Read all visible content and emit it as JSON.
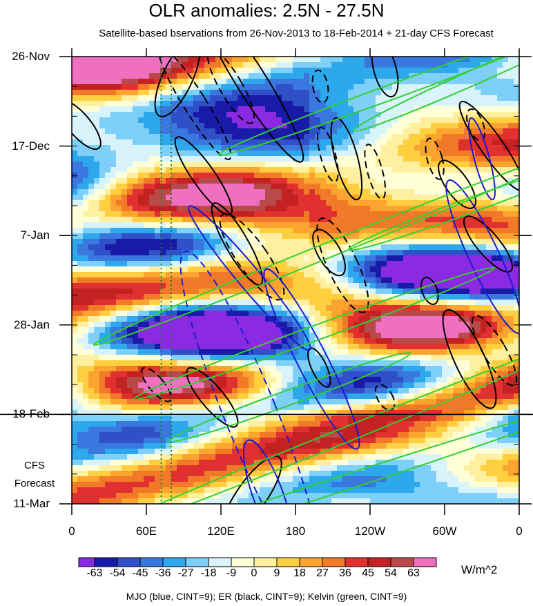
{
  "chart_data": {
    "type": "heatmap",
    "title": "OLR anomalies: 2.5N - 27.5N",
    "subtitle": "Satellite-based bservations from 26-Nov-2013 to 18-Feb-2014 + 21-day CFS Forecast",
    "x_tick_labels": [
      "0",
      "60E",
      "120E",
      "180",
      "120W",
      "60W",
      "0"
    ],
    "x_values_deg_east": [
      0,
      60,
      120,
      180,
      240,
      300,
      360
    ],
    "y_tick_labels": [
      "26-Nov",
      "17-Dec",
      "7-Jan",
      "28-Jan",
      "18-Feb",
      "11-Mar"
    ],
    "y_values_days": [
      0,
      21,
      42,
      63,
      84,
      105
    ],
    "forecast_start_day": 84,
    "forecast_label_line1": "CFS",
    "forecast_label_line2": "Forecast",
    "colorbar": {
      "levels": [
        "-63",
        "-54",
        "-45",
        "-36",
        "-27",
        "-18",
        "-9",
        "0",
        "9",
        "18",
        "27",
        "36",
        "45",
        "54",
        "63"
      ],
      "colors": [
        "#8a2be2",
        "#1a1aa8",
        "#3050c8",
        "#3a78e0",
        "#2ea8ec",
        "#7ed0f8",
        "#d9f3fb",
        "#ffffd8",
        "#fff0a0",
        "#ffcf40",
        "#fba430",
        "#f07a28",
        "#e03030",
        "#c42222",
        "#b84a4a",
        "#f070c0"
      ],
      "units": "W/m^2"
    },
    "footnote": "MJO (blue, CINT=9); ER (black, CINT=9); Kelvin (green, CINT=9)",
    "contour_colors": {
      "mjo": "#1a1ad0",
      "er": "#000000",
      "kelvin": "#30d030"
    },
    "contours": [
      {
        "kind": "er",
        "lon": 145,
        "day": 6,
        "rx": 4,
        "ry": 40,
        "rot": 32,
        "dash": false
      },
      {
        "kind": "er",
        "lon": 128,
        "day": 7,
        "rx": 3,
        "ry": 18,
        "rot": 30,
        "dash": true
      },
      {
        "kind": "er",
        "lon": 99,
        "day": 11,
        "rx": 3,
        "ry": 28,
        "rot": 32,
        "dash": true
      },
      {
        "kind": "er",
        "lon": 85,
        "day": 5,
        "rx": 4,
        "ry": 18,
        "rot": -25,
        "dash": false
      },
      {
        "kind": "er",
        "lon": 252,
        "day": 3,
        "rx": 3,
        "ry": 12,
        "rot": 15,
        "dash": false
      },
      {
        "kind": "er",
        "lon": 200,
        "day": 7,
        "rx": 2,
        "ry": 7,
        "rot": 10,
        "dash": true
      },
      {
        "kind": "er",
        "lon": 221,
        "day": 24,
        "rx": 3,
        "ry": 18,
        "rot": 15,
        "dash": false
      },
      {
        "kind": "er",
        "lon": 206,
        "day": 23,
        "rx": 2,
        "ry": 12,
        "rot": 15,
        "dash": true
      },
      {
        "kind": "er",
        "lon": 244,
        "day": 27,
        "rx": 2,
        "ry": 12,
        "rot": 15,
        "dash": true
      },
      {
        "kind": "er",
        "lon": 106,
        "day": 28,
        "rx": 3,
        "ry": 20,
        "rot": 35,
        "dash": false
      },
      {
        "kind": "er",
        "lon": 338,
        "day": 21,
        "rx": 3,
        "ry": 23,
        "rot": 35,
        "dash": false
      },
      {
        "kind": "er",
        "lon": 292,
        "day": 24,
        "rx": 2,
        "ry": 9,
        "rot": 15,
        "dash": true
      },
      {
        "kind": "er",
        "lon": 325,
        "day": 16,
        "rx": 2,
        "ry": 7,
        "rot": 20,
        "dash": true
      },
      {
        "kind": "er",
        "lon": 310,
        "day": 30,
        "rx": 3,
        "ry": 12,
        "rot": 35,
        "dash": false
      },
      {
        "kind": "er",
        "lon": 133,
        "day": 44,
        "rx": 3,
        "ry": 20,
        "rot": 30,
        "dash": false
      },
      {
        "kind": "er",
        "lon": 145,
        "day": 47,
        "rx": 4,
        "ry": 22,
        "rot": 35,
        "dash": true
      },
      {
        "kind": "er",
        "lon": 218,
        "day": 49,
        "rx": 4,
        "ry": 22,
        "rot": 25,
        "dash": true
      },
      {
        "kind": "er",
        "lon": 207,
        "day": 46,
        "rx": 3,
        "ry": 11,
        "rot": 30,
        "dash": false
      },
      {
        "kind": "er",
        "lon": 335,
        "day": 44,
        "rx": 3,
        "ry": 15,
        "rot": 40,
        "dash": false
      },
      {
        "kind": "er",
        "lon": 288,
        "day": 55,
        "rx": 2,
        "ry": 6,
        "rot": 20,
        "dash": false
      },
      {
        "kind": "er",
        "lon": 320,
        "day": 71,
        "rx": 4,
        "ry": 23,
        "rot": 25,
        "dash": false
      },
      {
        "kind": "er",
        "lon": 340,
        "day": 69,
        "rx": 3,
        "ry": 17,
        "rot": 30,
        "dash": true
      },
      {
        "kind": "er",
        "lon": 199,
        "day": 73,
        "rx": 2,
        "ry": 9,
        "rot": 25,
        "dash": false
      },
      {
        "kind": "er",
        "lon": 113,
        "day": 80,
        "rx": 3,
        "ry": 16,
        "rot": 40,
        "dash": false
      },
      {
        "kind": "er",
        "lon": 68,
        "day": 77,
        "rx": 2,
        "ry": 9,
        "rot": 40,
        "dash": true
      },
      {
        "kind": "er",
        "lon": 252,
        "day": 80,
        "rx": 2,
        "ry": 6,
        "rot": 30,
        "dash": true
      },
      {
        "kind": "er",
        "lon": 6,
        "day": 16,
        "rx": 3,
        "ry": 13,
        "rot": 40,
        "dash": false
      },
      {
        "kind": "er",
        "lon": 145,
        "day": 103,
        "rx": 4,
        "ry": 20,
        "rot": -35,
        "dash": false
      },
      {
        "kind": "mjo",
        "lon": 144,
        "day": 84,
        "rx": 7,
        "ry": 75,
        "rot": 22,
        "dash": true
      },
      {
        "kind": "mjo",
        "lon": 193,
        "day": 71,
        "rx": 4,
        "ry": 43,
        "rot": 27,
        "dash": false
      },
      {
        "kind": "mjo",
        "lon": 143,
        "day": 52,
        "rx": 3,
        "ry": 40,
        "rot": 40,
        "dash": false
      },
      {
        "kind": "mjo",
        "lon": 332,
        "day": 47,
        "rx": 4,
        "ry": 36,
        "rot": 25,
        "dash": false
      },
      {
        "kind": "mjo",
        "lon": 330,
        "day": 24,
        "rx": 2,
        "ry": 18,
        "rot": 15,
        "dash": false
      },
      {
        "kind": "mjo",
        "lon": 158,
        "day": 103,
        "rx": 4,
        "ry": 25,
        "rot": 20,
        "dash": false
      },
      {
        "kind": "kelvin",
        "lon": 210,
        "day": 45,
        "rx": 2,
        "ry": 110,
        "rot": -68,
        "dash": false
      },
      {
        "kind": "kelvin",
        "lon": 195,
        "day": 65,
        "rx": 2,
        "ry": 82,
        "rot": -70,
        "dash": false
      },
      {
        "kind": "kelvin",
        "lon": 210,
        "day": 90,
        "rx": 2,
        "ry": 120,
        "rot": -68,
        "dash": false
      },
      {
        "kind": "kelvin",
        "lon": 220,
        "day": 100,
        "rx": 2,
        "ry": 110,
        "rot": -72,
        "dash": false
      },
      {
        "kind": "kelvin",
        "lon": 330,
        "day": 4,
        "rx": 2,
        "ry": 60,
        "rot": -66,
        "dash": false
      },
      {
        "kind": "kelvin",
        "lon": 260,
        "day": 8,
        "rx": 2,
        "ry": 80,
        "rot": -70,
        "dash": false
      },
      {
        "kind": "kelvin",
        "lon": 320,
        "day": 35,
        "rx": 2,
        "ry": 55,
        "rot": -70,
        "dash": false
      },
      {
        "kind": "kelvin",
        "lon": 175,
        "day": 80,
        "rx": 2,
        "ry": 55,
        "rot": -70,
        "dash": false
      }
    ]
  }
}
